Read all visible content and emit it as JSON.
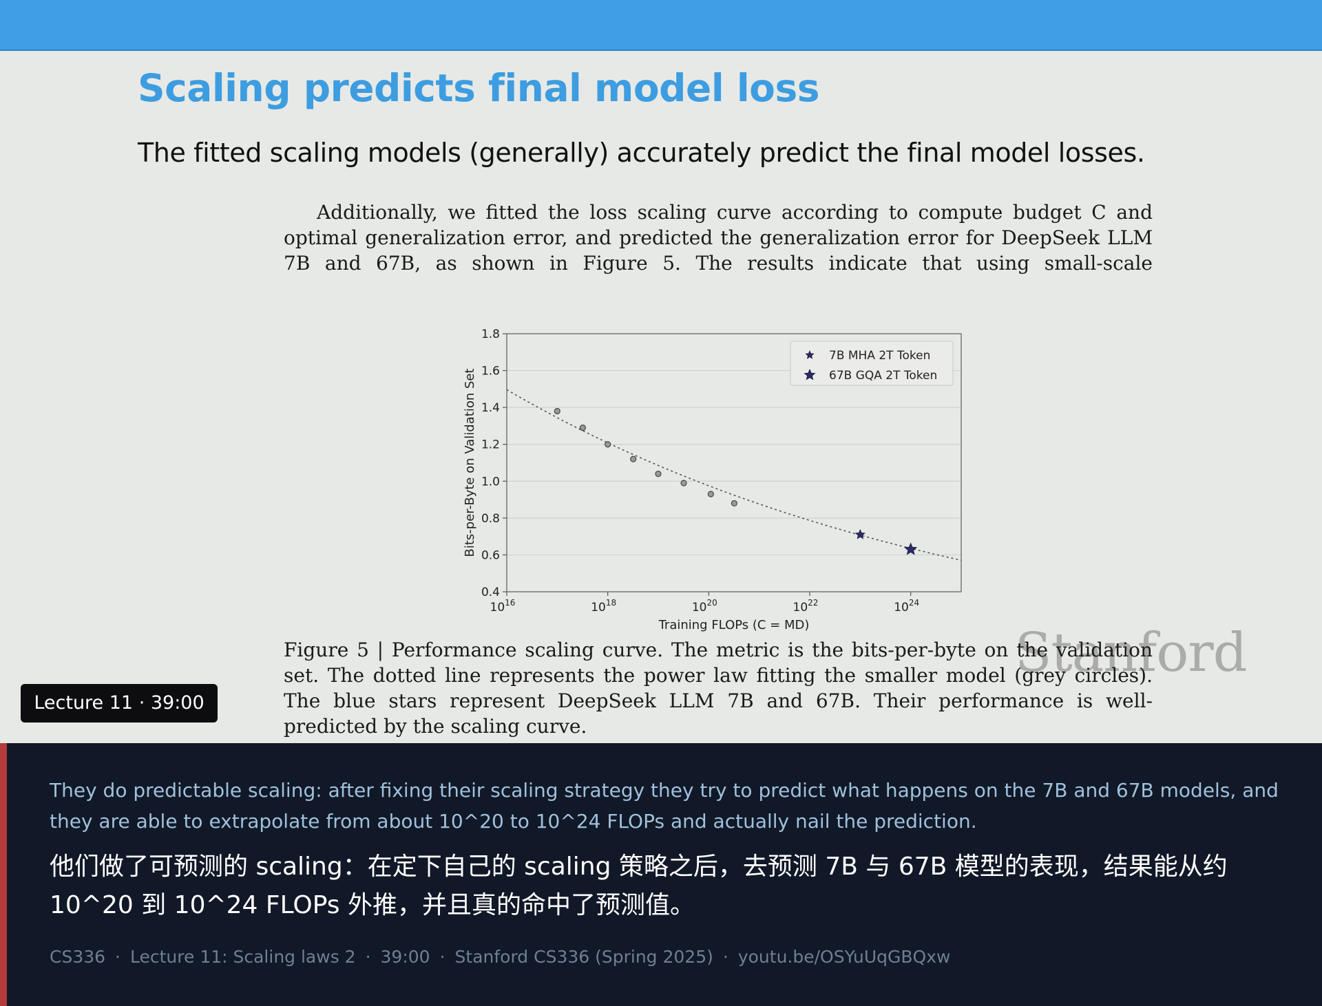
{
  "slide": {
    "title": "Scaling predicts final model loss",
    "subtitle": "The fitted scaling models (generally) accurately predict the final model losses.",
    "excerpt": "Additionally, we fitted the loss scaling curve according to compute budget C and optimal generalization error, and predicted the generalization error for DeepSeek LLM 7B and 67B, as shown in Figure 5. The results indicate that using small-scale experiments can accurately predict",
    "caption": "Figure 5 | Performance scaling curve. The metric is the bits-per-byte on the validation set. The dotted line represents the power law fitting the smaller model (grey circles). The blue stars represent DeepSeek LLM 7B and 67B. Their performance is well-predicted by the scaling curve.",
    "watermark": "Stanford"
  },
  "chart_data": {
    "type": "scatter",
    "xscale": "log",
    "xlabel": "Training FLOPs (C = MD)",
    "ylabel": "Bits-per-Byte on Validation Set",
    "xlim": [
      1e+16,
      1e+25
    ],
    "ylim": [
      0.4,
      1.8
    ],
    "xticks": [
      1e+16,
      1e+18,
      1e+20,
      1e+22,
      1e+24
    ],
    "xtick_labels": [
      {
        "base": "10",
        "exp": "16"
      },
      {
        "base": "10",
        "exp": "18"
      },
      {
        "base": "10",
        "exp": "20"
      },
      {
        "base": "10",
        "exp": "22"
      },
      {
        "base": "10",
        "exp": "24"
      }
    ],
    "yticks": [
      "0.4",
      "0.6",
      "0.8",
      "1.0",
      "1.2",
      "1.4",
      "1.6",
      "1.8"
    ],
    "grid": "horizontal",
    "legend_position": "top-right",
    "fit": {
      "style": "dotted",
      "color": "#555555",
      "a": 8.3,
      "alpha": 0.0465
    },
    "series": [
      {
        "marker": "circle",
        "color": "#666666",
        "points": [
          {
            "x": 1e+17,
            "y": 1.38
          },
          {
            "x": 3.2e+17,
            "y": 1.29
          },
          {
            "x": 1e+18,
            "y": 1.2
          },
          {
            "x": 3.2e+18,
            "y": 1.12
          },
          {
            "x": 1e+19,
            "y": 1.04
          },
          {
            "x": 3.2e+19,
            "y": 0.99
          },
          {
            "x": 1.1e+20,
            "y": 0.93
          },
          {
            "x": 3.2e+20,
            "y": 0.88
          }
        ]
      },
      {
        "name": "7B MHA 2T Token",
        "marker": "star",
        "size": "small",
        "color": "#2b2b66",
        "points": [
          {
            "x": 1e+23,
            "y": 0.71
          }
        ]
      },
      {
        "name": "67B GQA 2T Token",
        "marker": "star",
        "size": "large",
        "color": "#2b2b66",
        "points": [
          {
            "x": 1e+24,
            "y": 0.63
          }
        ]
      }
    ]
  },
  "video": {
    "badge": "Lecture 11 · 39:00"
  },
  "subtitles": {
    "en": "They do predictable scaling: after fixing their scaling strategy they try to predict what happens on the 7B and 67B models, and they are able to extrapolate from about 10^20 to 10^24 FLOPs and actually nail the prediction.",
    "zh": "他们做了可预测的 scaling：在定下自己的 scaling 策略之后，去预测 7B 与 67B 模型的表现，结果能从约 10^20 到 10^24 FLOPs 外推，并且真的命中了预测值。"
  },
  "meta": {
    "course": "CS336",
    "lecture": "Lecture 11: Scaling laws 2",
    "timestamp": "39:00",
    "source": "Stanford CS336 (Spring 2025)",
    "link": "youtu.be/OSYuUqGBQxw",
    "separator": "·"
  },
  "colors": {
    "accent": "#3d9de0",
    "topbar": "#3f9ee6",
    "panel": "#111827",
    "panel_accent": "#b23b3b",
    "subtitle_en": "#9fc1dc"
  }
}
